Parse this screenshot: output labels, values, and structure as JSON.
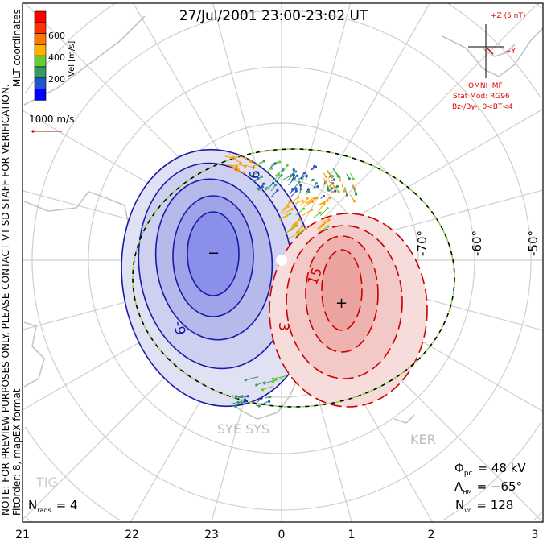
{
  "title": "27/Jul/2001 23:00-23:02 UT",
  "side_note": "NOTE: FOR PREVIEW PURPOSES ONLY. PLEASE CONTACT VT-SD STAFF FOR VERIFICATION.",
  "side_fit": "FitOrder: 8, mapEX format",
  "coords_label": "MLT coordinates",
  "colorbar": {
    "label": "Vel [m/s]",
    "ticks": [
      "200",
      "400",
      "600"
    ],
    "colors": [
      "#ff0000",
      "#ff3300",
      "#ff7700",
      "#ffb000",
      "#66cc33",
      "#339966",
      "#2255cc",
      "#0000ff"
    ]
  },
  "scale_vector_label": "1000 m/s",
  "imf": {
    "z_label": "+Z (5 nT)",
    "y_label": "+Y",
    "source": "OMNI IMF",
    "model": "Stat Mod: RG96",
    "condition": "Bz-/By-, 0<BT<4"
  },
  "lat_labels": [
    "-70°",
    "-60°",
    "-50°"
  ],
  "mlt_labels": [
    "21",
    "22",
    "23",
    "0",
    "1",
    "2",
    "3"
  ],
  "contour_labels": [
    "-9",
    "-9",
    "3",
    "15"
  ],
  "min_marker": "−",
  "max_marker": "+",
  "stations": [
    "SYE SYS",
    "KER",
    "TIG"
  ],
  "stats": {
    "phi_symbol": "Φ",
    "phi_sub": "pc",
    "phi_value": "= 48 kV",
    "lambda_symbol": "Λ",
    "lambda_sub": "HM",
    "lambda_value": "= −65°",
    "nvc_symbol": "N",
    "nvc_sub": "vc",
    "nvc_value": "= 128",
    "nrads_symbol": "N",
    "nrads_sub": "rads",
    "nrads_value": "= 4"
  }
}
